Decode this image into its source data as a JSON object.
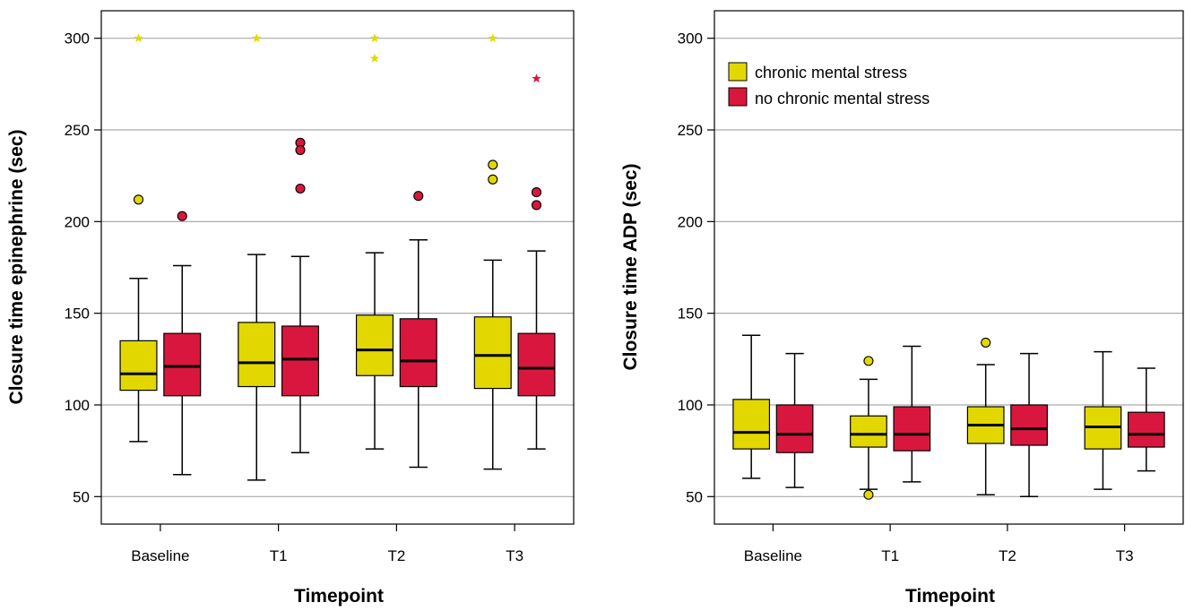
{
  "colors": {
    "chronic": "#e2d800",
    "no_chronic": "#d9173e",
    "grid": "#aaaaaa",
    "outline": "#000000"
  },
  "legend": {
    "chronic_label": "chronic mental stress",
    "no_chronic_label": "no chronic mental stress",
    "placement": "top-left of right panel"
  },
  "chart_data": [
    {
      "type": "boxplot",
      "xlabel": "Timepoint",
      "ylabel": "Closure time epinephrine (sec)",
      "categories": [
        "Baseline",
        "T1",
        "T2",
        "T3"
      ],
      "ylim": [
        35,
        315
      ],
      "yticks": [
        50,
        100,
        150,
        200,
        250,
        300
      ],
      "grid": "horizontal",
      "series": [
        {
          "key": "chronic",
          "boxes": [
            {
              "whisker_low": 80,
              "q1": 108,
              "median": 117,
              "q3": 135,
              "whisker_high": 169,
              "outliers": [
                212
              ],
              "extremes": [
                300
              ]
            },
            {
              "whisker_low": 59,
              "q1": 110,
              "median": 123,
              "q3": 145,
              "whisker_high": 182,
              "outliers": [],
              "extremes": [
                300
              ]
            },
            {
              "whisker_low": 76,
              "q1": 116,
              "median": 130,
              "q3": 149,
              "whisker_high": 183,
              "outliers": [],
              "extremes": [
                300,
                289
              ]
            },
            {
              "whisker_low": 65,
              "q1": 109,
              "median": 127,
              "q3": 148,
              "whisker_high": 179,
              "outliers": [
                231,
                223
              ],
              "extremes": [
                300
              ]
            }
          ]
        },
        {
          "key": "no_chronic",
          "boxes": [
            {
              "whisker_low": 62,
              "q1": 105,
              "median": 121,
              "q3": 139,
              "whisker_high": 176,
              "outliers": [
                203
              ],
              "extremes": []
            },
            {
              "whisker_low": 74,
              "q1": 105,
              "median": 125,
              "q3": 143,
              "whisker_high": 181,
              "outliers": [
                243,
                239,
                218
              ],
              "extremes": []
            },
            {
              "whisker_low": 66,
              "q1": 110,
              "median": 124,
              "q3": 147,
              "whisker_high": 190,
              "outliers": [
                214
              ],
              "extremes": []
            },
            {
              "whisker_low": 76,
              "q1": 105,
              "median": 120,
              "q3": 139,
              "whisker_high": 184,
              "outliers": [
                216,
                209
              ],
              "extremes": [
                278
              ]
            }
          ]
        }
      ]
    },
    {
      "type": "boxplot",
      "xlabel": "Timepoint",
      "ylabel": "Closure time ADP (sec)",
      "categories": [
        "Baseline",
        "T1",
        "T2",
        "T3"
      ],
      "ylim": [
        35,
        315
      ],
      "yticks": [
        50,
        100,
        150,
        200,
        250,
        300
      ],
      "grid": "horizontal",
      "series": [
        {
          "key": "chronic",
          "boxes": [
            {
              "whisker_low": 60,
              "q1": 76,
              "median": 85,
              "q3": 103,
              "whisker_high": 138,
              "outliers": [],
              "extremes": []
            },
            {
              "whisker_low": 54,
              "q1": 77,
              "median": 84,
              "q3": 94,
              "whisker_high": 114,
              "outliers": [
                124,
                51
              ],
              "extremes": []
            },
            {
              "whisker_low": 51,
              "q1": 79,
              "median": 89,
              "q3": 99,
              "whisker_high": 122,
              "outliers": [
                134
              ],
              "extremes": []
            },
            {
              "whisker_low": 54,
              "q1": 76,
              "median": 88,
              "q3": 99,
              "whisker_high": 129,
              "outliers": [],
              "extremes": []
            }
          ]
        },
        {
          "key": "no_chronic",
          "boxes": [
            {
              "whisker_low": 55,
              "q1": 74,
              "median": 84,
              "q3": 100,
              "whisker_high": 128,
              "outliers": [],
              "extremes": []
            },
            {
              "whisker_low": 58,
              "q1": 75,
              "median": 84,
              "q3": 99,
              "whisker_high": 132,
              "outliers": [],
              "extremes": []
            },
            {
              "whisker_low": 50,
              "q1": 78,
              "median": 87,
              "q3": 100,
              "whisker_high": 128,
              "outliers": [],
              "extremes": []
            },
            {
              "whisker_low": 64,
              "q1": 77,
              "median": 84,
              "q3": 96,
              "whisker_high": 120,
              "outliers": [],
              "extremes": []
            }
          ]
        }
      ]
    }
  ]
}
